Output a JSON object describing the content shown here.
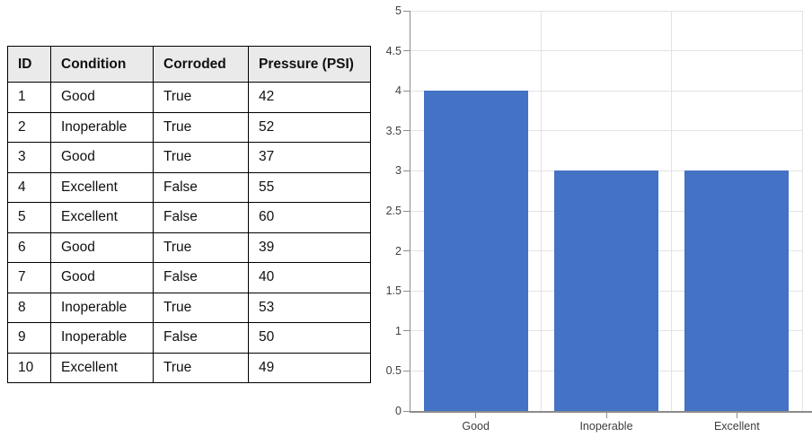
{
  "table": {
    "headers": [
      "ID",
      "Condition",
      "Corroded",
      "Pressure (PSI)"
    ],
    "rows": [
      [
        "1",
        "Good",
        "True",
        "42"
      ],
      [
        "2",
        "Inoperable",
        "True",
        "52"
      ],
      [
        "3",
        "Good",
        "True",
        "37"
      ],
      [
        "4",
        "Excellent",
        "False",
        "55"
      ],
      [
        "5",
        "Excellent",
        "False",
        "60"
      ],
      [
        "6",
        "Good",
        "True",
        "39"
      ],
      [
        "7",
        "Good",
        "False",
        "40"
      ],
      [
        "8",
        "Inoperable",
        "True",
        "53"
      ],
      [
        "9",
        "Inoperable",
        "False",
        "50"
      ],
      [
        "10",
        "Excellent",
        "True",
        "49"
      ]
    ]
  },
  "chart_data": {
    "type": "bar",
    "categories": [
      "Good",
      "Inoperable",
      "Excellent"
    ],
    "values": [
      4,
      3,
      3
    ],
    "title": "",
    "xlabel": "",
    "ylabel": "",
    "ylim": [
      0,
      5
    ],
    "ytick_step": 0.5,
    "ytick_labels": [
      "0",
      "0.5",
      "1",
      "1.5",
      "2",
      "2.5",
      "3",
      "3.5",
      "4",
      "4.5",
      "5"
    ],
    "grid": true,
    "legend": "none",
    "bar_color": "#4472C4",
    "gridline_color": "#e3e3e3",
    "axis_color": "#8c8c8c",
    "label_color": "#404040"
  }
}
